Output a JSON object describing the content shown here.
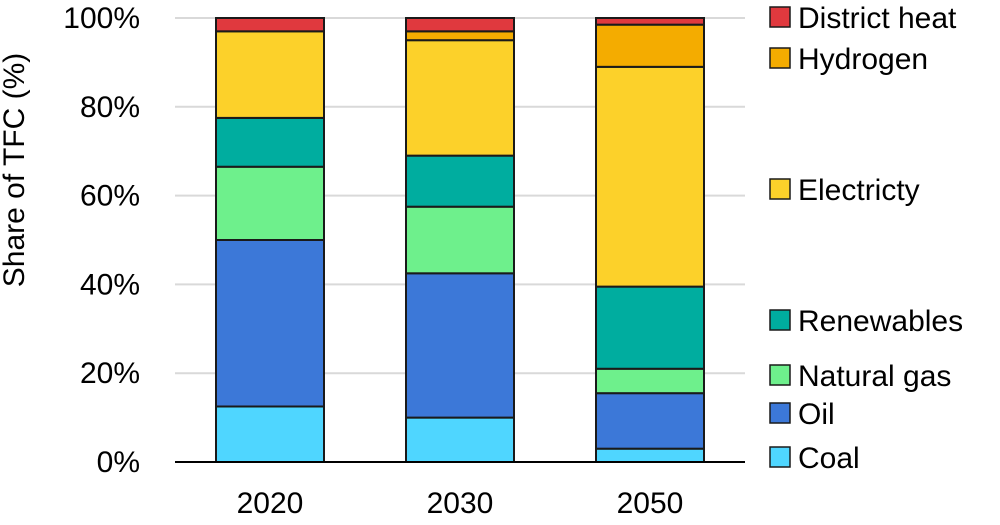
{
  "chart_data": {
    "type": "bar",
    "stacked": true,
    "title": "",
    "xlabel": "",
    "ylabel": "Share of TFC (%)",
    "ylim": [
      0,
      100
    ],
    "yticks": [
      "0%",
      "20%",
      "40%",
      "60%",
      "80%",
      "100%"
    ],
    "ytick_values": [
      0,
      20,
      40,
      60,
      80,
      100
    ],
    "categories": [
      "2020",
      "2030",
      "2050"
    ],
    "grid": true,
    "legend_position": "right",
    "series": [
      {
        "name": "Coal",
        "color": "#4fd6ff",
        "values": [
          12.5,
          10,
          3
        ]
      },
      {
        "name": "Oil",
        "color": "#3c78d8",
        "values": [
          37.5,
          32.5,
          12.5
        ]
      },
      {
        "name": "Natural gas",
        "color": "#6ef08c",
        "values": [
          16.5,
          15,
          5.5
        ]
      },
      {
        "name": "Renewables",
        "color": "#00ad9f",
        "values": [
          11,
          11.5,
          18.5
        ]
      },
      {
        "name": "Electricty",
        "color": "#fcd12a",
        "values": [
          19.5,
          26,
          49.5
        ]
      },
      {
        "name": "Hydrogen",
        "color": "#f4ac00",
        "values": [
          0,
          2,
          9.5
        ]
      },
      {
        "name": "District heat",
        "color": "#e0393e",
        "values": [
          3,
          3,
          1.5
        ]
      }
    ]
  }
}
